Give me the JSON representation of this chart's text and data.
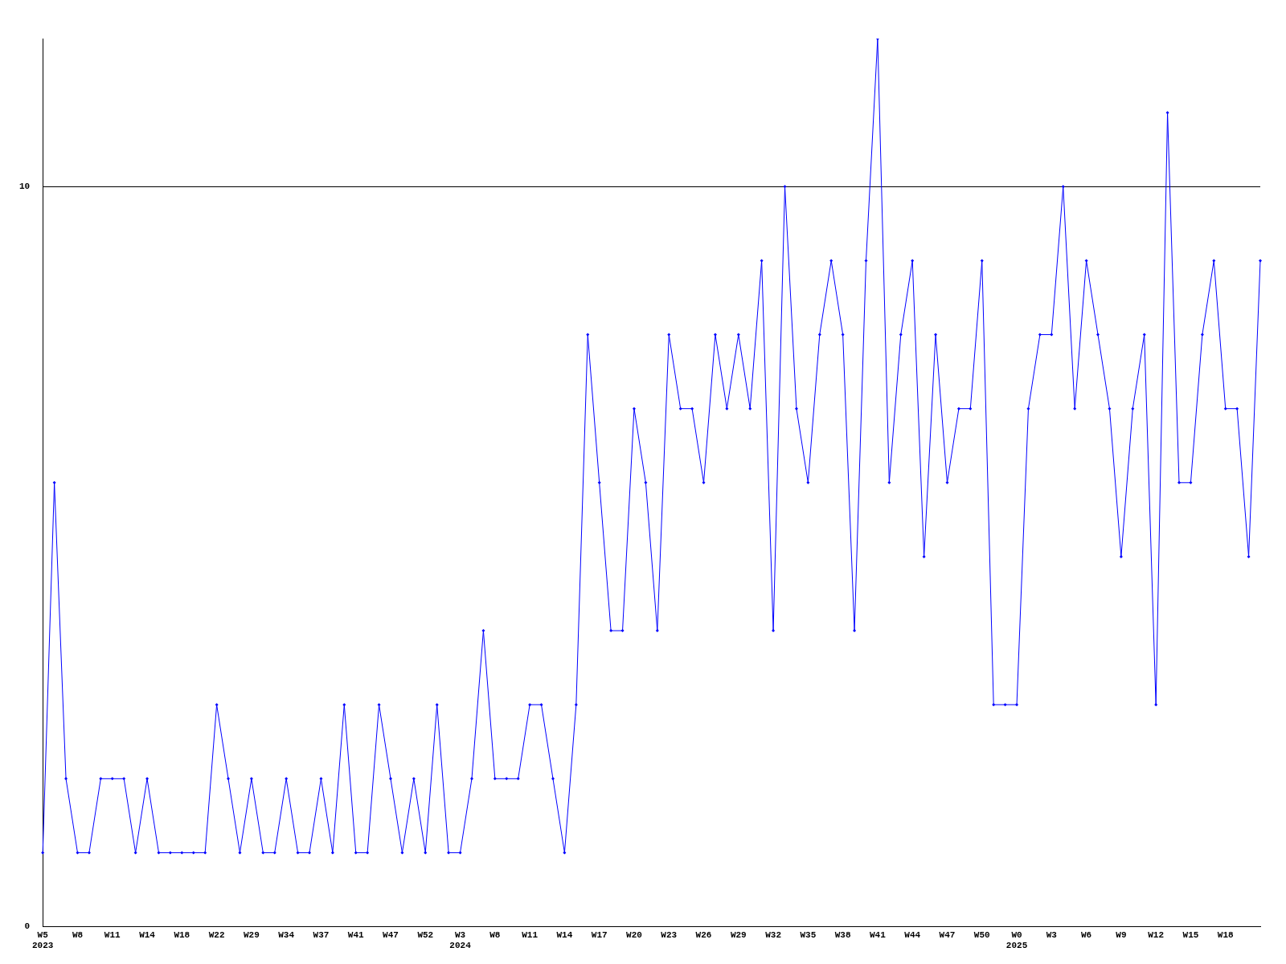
{
  "chart_data": {
    "type": "line",
    "categories": [
      "W5\n2023",
      null,
      null,
      "W8",
      null,
      null,
      "W11",
      null,
      null,
      "W14",
      null,
      null,
      "W18",
      null,
      null,
      "W22",
      null,
      null,
      "W29",
      null,
      null,
      "W34",
      null,
      null,
      "W37",
      null,
      null,
      "W41",
      null,
      null,
      "W47",
      null,
      null,
      "W52",
      null,
      null,
      "W3\n2024",
      null,
      null,
      "W8",
      null,
      null,
      "W11",
      null,
      null,
      "W14",
      null,
      null,
      "W17",
      null,
      null,
      "W20",
      null,
      null,
      "W23",
      null,
      null,
      "W26",
      null,
      null,
      "W29",
      null,
      null,
      "W32",
      null,
      null,
      "W35",
      null,
      null,
      "W38",
      null,
      null,
      "W41",
      null,
      null,
      "W44",
      null,
      null,
      "W47",
      null,
      null,
      "W50",
      null,
      null,
      "W0\n2025",
      null,
      null,
      "W3",
      null,
      null,
      "W6",
      null,
      null,
      "W9",
      null,
      null,
      "W12",
      null,
      null,
      "W15",
      null,
      null,
      "W18",
      null,
      null,
      null
    ],
    "series": [
      {
        "color": "#0000ff",
        "values": [
          1,
          6,
          2,
          1,
          1,
          2,
          2,
          2,
          1,
          2,
          1,
          1,
          1,
          1,
          1,
          3,
          2,
          1,
          2,
          1,
          1,
          2,
          1,
          1,
          2,
          1,
          3,
          1,
          1,
          3,
          2,
          1,
          2,
          1,
          3,
          1,
          1,
          2,
          4,
          2,
          2,
          2,
          3,
          3,
          2,
          1,
          3,
          8,
          6,
          4,
          4,
          7,
          6,
          4,
          8,
          7,
          7,
          6,
          8,
          7,
          8,
          7,
          9,
          4,
          10,
          7,
          6,
          8,
          9,
          8,
          4,
          9,
          12,
          6,
          8,
          9,
          5,
          8,
          6,
          7,
          7,
          9,
          3,
          3,
          3,
          7,
          8,
          8,
          10,
          7,
          9,
          8,
          7,
          5,
          7,
          8,
          3,
          11,
          6,
          6,
          8,
          9,
          7,
          7,
          5,
          9
        ]
      }
    ],
    "ylim": [
      0,
      12
    ],
    "yticks": [
      0,
      10
    ],
    "grid": "y",
    "legend": false,
    "marker": "diamond",
    "line_style": "solid"
  }
}
